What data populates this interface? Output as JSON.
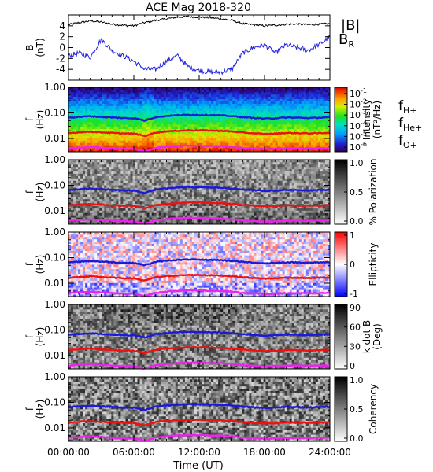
{
  "title": "ACE Mag 2018-320",
  "x_axis": {
    "label": "Time (UT)",
    "ticks": [
      "00:00:00",
      "06:00:00",
      "12:00:00",
      "18:00:00",
      "24:00:00"
    ],
    "range_hours": [
      0,
      24
    ]
  },
  "colors": {
    "b_total": "#000000",
    "b_r": "#1f1fe0",
    "f_h": "#1a1ad8",
    "f_he": "#ee1111",
    "f_o": "#ee22ee"
  },
  "panels": [
    {
      "id": "field",
      "ylabel": "B",
      "yunit": "(nT)",
      "yticks": [
        "4",
        "2",
        "0",
        "-2",
        "-4"
      ],
      "yrange": [
        -6,
        6
      ],
      "legend": [
        {
          "text": "|B|",
          "sub": "",
          "color": "#000000"
        },
        {
          "text": "B",
          "sub": "R",
          "color": "#1f1fe0"
        }
      ]
    },
    {
      "id": "intensity",
      "ylabel": "f",
      "yunit": "(Hz)",
      "yticks": [
        "1.00",
        "0.10",
        "0.01"
      ],
      "cbar_label_1": "Intensity",
      "cbar_label_2": "(nT²/Hz)",
      "cbar_ticks": [
        {
          "base": "10",
          "exp": "-1"
        },
        {
          "base": "10",
          "exp": "-2"
        },
        {
          "base": "10",
          "exp": "-3"
        },
        {
          "base": "10",
          "exp": "-4"
        },
        {
          "base": "10",
          "exp": "-5"
        },
        {
          "base": "10",
          "exp": "-6"
        }
      ],
      "legend": [
        {
          "text": "f",
          "sub": "H+",
          "color": "#1a1ad8"
        },
        {
          "text": "f",
          "sub": "He+",
          "color": "#ee1111"
        },
        {
          "text": "f",
          "sub": "O+",
          "color": "#ee22ee"
        }
      ]
    },
    {
      "id": "polarization",
      "ylabel": "f",
      "yunit": "(Hz)",
      "yticks": [
        "1.00",
        "0.10",
        "0.01"
      ],
      "cbar_label_1": "% Polarization",
      "cbar_label_2": "",
      "cbar_ticks": [
        "1.0",
        "0.5",
        "0.0"
      ]
    },
    {
      "id": "ellipticity",
      "ylabel": "f",
      "yunit": "(Hz)",
      "yticks": [
        "1.00",
        "0.10",
        "0.01"
      ],
      "cbar_label_1": "Ellipticity",
      "cbar_label_2": "",
      "cbar_ticks": [
        "1",
        "0",
        "-1"
      ]
    },
    {
      "id": "kdotb",
      "ylabel": "f",
      "yunit": "(Hz)",
      "yticks": [
        "1.00",
        "0.10",
        "0.01"
      ],
      "cbar_label_1": "k dot B",
      "cbar_label_2": "(Deg)",
      "cbar_ticks": [
        "90",
        "60",
        "30",
        "0"
      ]
    },
    {
      "id": "coherency",
      "ylabel": "f",
      "yunit": "(Hz)",
      "yticks": [
        "1.00",
        "0.10",
        "0.01"
      ],
      "cbar_label_1": "Coherency",
      "cbar_label_2": "",
      "cbar_ticks": [
        "1.0",
        "0.5",
        "0.0"
      ]
    }
  ],
  "chart_data": {
    "type": "line",
    "title": "ACE Mag 2018-320",
    "xlabel": "Time (UT)",
    "x_hours": [
      0,
      1,
      2,
      3,
      4,
      5,
      6,
      7,
      8,
      9,
      10,
      11,
      12,
      13,
      14,
      15,
      16,
      17,
      18,
      19,
      20,
      21,
      22,
      23,
      24
    ],
    "field_series": [
      {
        "name": "|B|",
        "unit": "nT",
        "values": [
          4.2,
          4.6,
          4.9,
          4.7,
          4.3,
          4.1,
          4.0,
          4.6,
          5.0,
          5.3,
          5.6,
          5.7,
          5.6,
          5.5,
          5.3,
          5.0,
          4.4,
          4.2,
          4.0,
          4.1,
          4.3,
          4.3,
          4.2,
          4.3,
          4.4
        ]
      },
      {
        "name": "B_R",
        "unit": "nT",
        "values": [
          -1.5,
          -1.0,
          -1.8,
          1.5,
          -0.5,
          -1.5,
          -2.5,
          -4.0,
          -4.0,
          -2.5,
          -1.5,
          -3.5,
          -4.2,
          -4.5,
          -4.5,
          -4.0,
          -1.0,
          0.0,
          0.5,
          -1.0,
          0.5,
          0.0,
          -0.5,
          0.5,
          2.0
        ]
      }
    ],
    "frequency_series": [
      {
        "name": "f_H+",
        "unit": "Hz",
        "values": [
          0.065,
          0.07,
          0.074,
          0.07,
          0.066,
          0.063,
          0.062,
          0.05,
          0.068,
          0.076,
          0.081,
          0.085,
          0.083,
          0.082,
          0.08,
          0.075,
          0.068,
          0.064,
          0.06,
          0.062,
          0.066,
          0.065,
          0.063,
          0.065,
          0.067
        ]
      },
      {
        "name": "f_He+",
        "unit": "Hz",
        "values": [
          0.016,
          0.0175,
          0.0185,
          0.0175,
          0.0165,
          0.0158,
          0.0155,
          0.0125,
          0.017,
          0.019,
          0.02,
          0.021,
          0.021,
          0.0205,
          0.02,
          0.0188,
          0.017,
          0.016,
          0.015,
          0.0155,
          0.0165,
          0.0162,
          0.0158,
          0.0162,
          0.0168
        ]
      },
      {
        "name": "f_O+",
        "unit": "Hz",
        "values": [
          0.0041,
          0.0044,
          0.0046,
          0.0044,
          0.0041,
          0.0039,
          0.0039,
          0.0031,
          0.0042,
          0.0047,
          0.0051,
          0.0053,
          0.0052,
          0.0051,
          0.005,
          0.0047,
          0.0042,
          0.004,
          0.0038,
          0.0039,
          0.0041,
          0.0041,
          0.004,
          0.0041,
          0.0042
        ]
      }
    ],
    "frequency_range_hz": [
      0.003,
      1.0
    ],
    "log_y_spectrograms": true
  }
}
